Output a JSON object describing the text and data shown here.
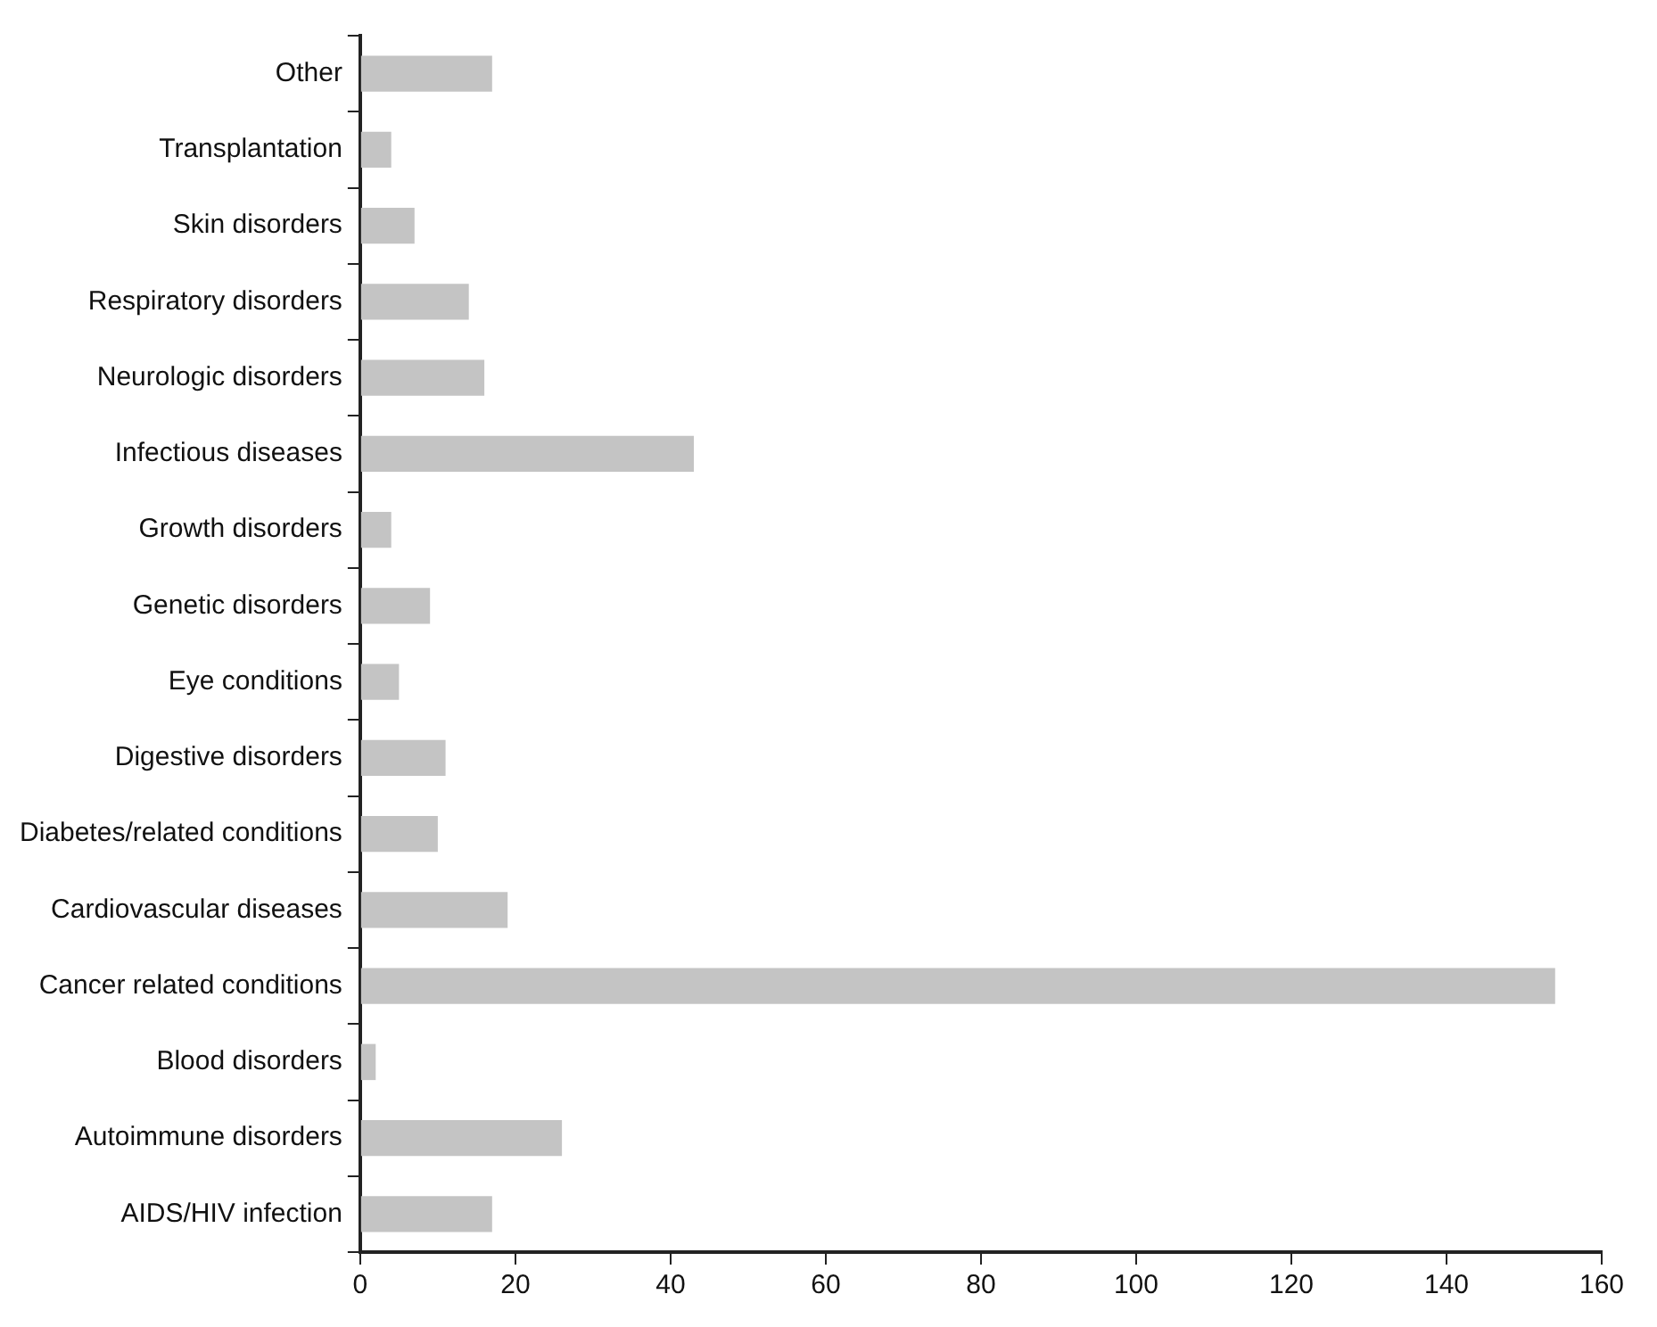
{
  "chart_data": {
    "type": "bar",
    "orientation": "horizontal",
    "categories": [
      "Other",
      "Transplantation",
      "Skin disorders",
      "Respiratory disorders",
      "Neurologic disorders",
      "Infectious diseases",
      "Growth disorders",
      "Genetic disorders",
      "Eye conditions",
      "Digestive disorders",
      "Diabetes/related conditions",
      "Cardiovascular diseases",
      "Cancer related conditions",
      "Blood disorders",
      "Autoimmune disorders",
      "AIDS/HIV infection"
    ],
    "values": [
      17,
      4,
      7,
      14,
      16,
      43,
      4,
      9,
      5,
      11,
      10,
      19,
      154,
      2,
      26,
      17
    ],
    "color": "#c4c4c4",
    "xlim": [
      0,
      160
    ],
    "xticks": [
      0,
      20,
      40,
      60,
      80,
      100,
      120,
      140,
      160
    ],
    "grid": false,
    "legend": false
  }
}
